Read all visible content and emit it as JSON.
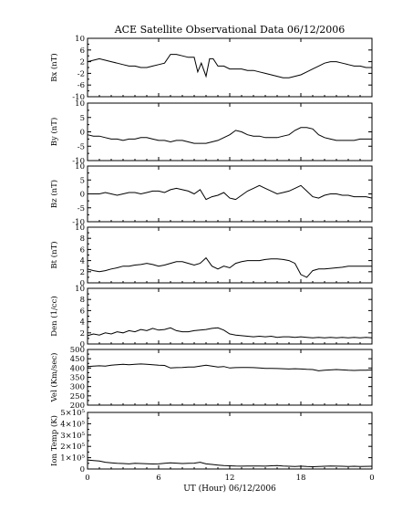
{
  "chart_data": {
    "type": "line",
    "title": "ACE Satellite Observational Data   06/12/2006",
    "xlabel": "UT (Hour)  06/12/2006",
    "x_ticks": [
      "0",
      "6",
      "12",
      "18",
      "0"
    ],
    "xlim": [
      0,
      24
    ],
    "grid": false,
    "line_color": "#000000",
    "panels": [
      {
        "id": "bx",
        "ylabel": "Bx (nT)",
        "ylim": [
          -10,
          10
        ],
        "y_ticks": [
          "10",
          "6",
          "2",
          "-2",
          "-6",
          "-10"
        ],
        "y_tick_values": [
          10,
          6,
          2,
          -2,
          -6,
          -10
        ],
        "series": [
          {
            "x": [
              0,
              0.5,
              1,
              1.5,
              2,
              2.5,
              3,
              3.5,
              4,
              4.5,
              5,
              5.5,
              6,
              6.5,
              7,
              7.5,
              8,
              8.5,
              9,
              9.3,
              9.6,
              10,
              10.3,
              10.6,
              11,
              11.5,
              12,
              12.5,
              13,
              13.5,
              14,
              14.5,
              15,
              15.5,
              16,
              16.5,
              17,
              17.5,
              18,
              18.5,
              19,
              19.5,
              20,
              20.5,
              21,
              21.5,
              22,
              22.5,
              23,
              23.5,
              24
            ],
            "y": [
              2,
              2.5,
              3,
              2.5,
              2,
              1.5,
              1,
              0.5,
              0.5,
              0,
              0,
              0.5,
              1,
              1.5,
              4.5,
              4.5,
              4,
              3.5,
              3.5,
              -1.5,
              1.5,
              -3,
              3,
              3,
              0.5,
              0.5,
              -0.5,
              -0.5,
              -0.5,
              -1,
              -1,
              -1.5,
              -2,
              -2.5,
              -3,
              -3.5,
              -3.5,
              -3,
              -2.5,
              -1.5,
              -0.5,
              0.5,
              1.5,
              2,
              2,
              1.5,
              1,
              0.5,
              0.5,
              0,
              0
            ]
          }
        ]
      },
      {
        "id": "by",
        "ylabel": "By (nT)",
        "ylim": [
          -10,
          10
        ],
        "y_ticks": [
          "10",
          "5",
          "0",
          "-5",
          "-10"
        ],
        "y_tick_values": [
          10,
          5,
          0,
          -5,
          -10
        ],
        "series": [
          {
            "x": [
              0,
              0.5,
              1,
              1.5,
              2,
              2.5,
              3,
              3.5,
              4,
              4.5,
              5,
              5.5,
              6,
              6.5,
              7,
              7.5,
              8,
              8.5,
              9,
              9.5,
              10,
              10.5,
              11,
              11.5,
              12,
              12.5,
              13,
              13.5,
              14,
              14.5,
              15,
              15.5,
              16,
              16.5,
              17,
              17.5,
              18,
              18.5,
              19,
              19.5,
              20,
              20.5,
              21,
              21.5,
              22,
              22.5,
              23,
              23.5,
              24
            ],
            "y": [
              -1,
              -1.5,
              -1.5,
              -2,
              -2.5,
              -2.5,
              -3,
              -2.5,
              -2.5,
              -2,
              -2,
              -2.5,
              -3,
              -3,
              -3.5,
              -3,
              -3,
              -3.5,
              -4,
              -4,
              -4,
              -3.5,
              -3,
              -2,
              -1,
              0.5,
              0,
              -1,
              -1.5,
              -1.5,
              -2,
              -2,
              -2,
              -1.5,
              -1,
              0.5,
              1.5,
              1.5,
              1,
              -1,
              -2,
              -2.5,
              -3,
              -3,
              -3,
              -3,
              -2.5,
              -2.5,
              -2.5
            ]
          }
        ]
      },
      {
        "id": "bz",
        "ylabel": "Bz (nT)",
        "ylim": [
          -10,
          10
        ],
        "y_ticks": [
          "10",
          "5",
          "0",
          "-5",
          "-10"
        ],
        "y_tick_values": [
          10,
          5,
          0,
          -5,
          -10
        ],
        "series": [
          {
            "x": [
              0,
              0.5,
              1,
              1.5,
              2,
              2.5,
              3,
              3.5,
              4,
              4.5,
              5,
              5.5,
              6,
              6.5,
              7,
              7.5,
              8,
              8.5,
              9,
              9.5,
              10,
              10.5,
              11,
              11.5,
              12,
              12.5,
              13,
              13.5,
              14,
              14.5,
              15,
              15.5,
              16,
              16.5,
              17,
              17.5,
              18,
              18.5,
              19,
              19.5,
              20,
              20.5,
              21,
              21.5,
              22,
              22.5,
              23,
              23.5,
              24
            ],
            "y": [
              0,
              0,
              0,
              0.5,
              0,
              -0.5,
              0,
              0.5,
              0.5,
              0,
              0.5,
              1,
              1,
              0.5,
              1.5,
              2,
              1.5,
              1,
              0,
              1.5,
              -2,
              -1,
              -0.5,
              0.5,
              -1.5,
              -2,
              -0.5,
              1,
              2,
              3,
              2,
              1,
              0,
              0.5,
              1,
              2,
              3,
              1,
              -1,
              -1.5,
              -0.5,
              0,
              0,
              -0.5,
              -0.5,
              -1,
              -1,
              -1,
              -1.5
            ]
          }
        ]
      },
      {
        "id": "bt",
        "ylabel": "Bt (nT)",
        "ylim": [
          0,
          10
        ],
        "y_ticks": [
          "10",
          "8",
          "6",
          "4",
          "2",
          "0"
        ],
        "y_tick_values": [
          10,
          8,
          6,
          4,
          2,
          0
        ],
        "series": [
          {
            "x": [
              0,
              0.5,
              1,
              1.5,
              2,
              2.5,
              3,
              3.5,
              4,
              4.5,
              5,
              5.5,
              6,
              6.5,
              7,
              7.5,
              8,
              8.5,
              9,
              9.5,
              10,
              10.5,
              11,
              11.5,
              12,
              12.5,
              13,
              13.5,
              14,
              14.5,
              15,
              15.5,
              16,
              16.5,
              17,
              17.5,
              18,
              18.5,
              19,
              19.5,
              20,
              20.5,
              21,
              21.5,
              22,
              22.5,
              23,
              23.5,
              24
            ],
            "y": [
              2.5,
              2.2,
              2,
              2.2,
              2.5,
              2.7,
              3,
              3,
              3.2,
              3.3,
              3.5,
              3.3,
              3,
              3.2,
              3.5,
              3.8,
              3.8,
              3.5,
              3.2,
              3.5,
              4.5,
              3,
              2.5,
              3,
              2.7,
              3.5,
              3.8,
              4,
              4,
              4,
              4.2,
              4.3,
              4.3,
              4.2,
              4,
              3.5,
              1.5,
              1,
              2.2,
              2.5,
              2.5,
              2.6,
              2.7,
              2.8,
              3,
              3,
              3,
              3,
              3
            ]
          }
        ]
      },
      {
        "id": "den",
        "ylabel": "Den (1/cc)",
        "ylim": [
          0,
          10
        ],
        "y_ticks": [
          "10",
          "8",
          "6",
          "4",
          "2",
          "0"
        ],
        "y_tick_values": [
          10,
          8,
          6,
          4,
          2,
          0
        ],
        "series": [
          {
            "x": [
              0,
              0.5,
              1,
              1.5,
              2,
              2.5,
              3,
              3.5,
              4,
              4.5,
              5,
              5.5,
              6,
              6.5,
              7,
              7.5,
              8,
              8.5,
              9,
              9.5,
              10,
              10.5,
              11,
              11.5,
              12,
              12.5,
              13,
              13.5,
              14,
              14.5,
              15,
              15.5,
              16,
              16.5,
              17,
              17.5,
              18,
              18.5,
              19,
              19.5,
              20,
              20.5,
              21,
              21.5,
              22,
              22.5,
              23,
              23.5,
              24
            ],
            "y": [
              1.5,
              1.8,
              1.6,
              2,
              1.8,
              2.2,
              2,
              2.4,
              2.2,
              2.6,
              2.4,
              2.8,
              2.5,
              2.6,
              2.9,
              2.4,
              2.2,
              2.2,
              2.4,
              2.5,
              2.6,
              2.8,
              2.9,
              2.5,
              1.8,
              1.6,
              1.5,
              1.4,
              1.3,
              1.4,
              1.3,
              1.4,
              1.2,
              1.3,
              1.3,
              1.2,
              1.3,
              1.2,
              1.1,
              1.2,
              1.1,
              1.2,
              1.1,
              1.2,
              1.1,
              1.2,
              1.1,
              1.2,
              1.1
            ]
          }
        ]
      },
      {
        "id": "vel",
        "ylabel": "Vel (Km/sec)",
        "ylim": [
          200,
          500
        ],
        "y_ticks": [
          "500",
          "450",
          "400",
          "350",
          "300",
          "250",
          "200"
        ],
        "y_tick_values": [
          500,
          450,
          400,
          350,
          300,
          250,
          200
        ],
        "series": [
          {
            "x": [
              0,
              0.5,
              1,
              1.5,
              2,
              2.5,
              3,
              3.5,
              4,
              4.5,
              5,
              5.5,
              6,
              6.5,
              7,
              7.5,
              8,
              8.5,
              9,
              9.5,
              10,
              10.5,
              11,
              11.5,
              12,
              12.5,
              13,
              13.5,
              14,
              14.5,
              15,
              15.5,
              16,
              16.5,
              17,
              17.5,
              18,
              18.5,
              19,
              19.5,
              20,
              20.5,
              21,
              21.5,
              22,
              22.5,
              23,
              23.5,
              24
            ],
            "y": [
              408,
              410,
              412,
              410,
              415,
              418,
              420,
              418,
              420,
              422,
              420,
              418,
              415,
              414,
              400,
              402,
              403,
              405,
              405,
              410,
              415,
              410,
              405,
              408,
              400,
              402,
              403,
              403,
              402,
              400,
              398,
              398,
              397,
              396,
              395,
              396,
              395,
              393,
              392,
              385,
              388,
              390,
              392,
              390,
              388,
              387,
              388,
              388,
              390
            ]
          }
        ]
      },
      {
        "id": "temp",
        "ylabel": "Ion Temp (K)",
        "ylim": [
          0,
          500000
        ],
        "y_ticks": [
          "0",
          "1×10⁵",
          "2×10⁵",
          "3×10⁵",
          "4×10⁵",
          "5×10⁵"
        ],
        "y_tick_values": [
          0,
          100000,
          200000,
          300000,
          400000,
          500000
        ],
        "series": [
          {
            "x": [
              0,
              0.5,
              1,
              1.5,
              2,
              2.5,
              3,
              3.5,
              4,
              4.5,
              5,
              5.5,
              6,
              6.5,
              7,
              7.5,
              8,
              8.5,
              9,
              9.5,
              10,
              10.5,
              11,
              11.5,
              12,
              12.5,
              13,
              13.5,
              14,
              14.5,
              15,
              15.5,
              16,
              16.5,
              17,
              17.5,
              18,
              18.5,
              19,
              19.5,
              20,
              20.5,
              21,
              21.5,
              22,
              22.5,
              23,
              23.5,
              24
            ],
            "y": [
              80000,
              75000,
              70000,
              60000,
              55000,
              50000,
              48000,
              45000,
              50000,
              48000,
              46000,
              44000,
              45000,
              50000,
              55000,
              52000,
              48000,
              50000,
              52000,
              60000,
              45000,
              40000,
              35000,
              30000,
              28000,
              26000,
              25000,
              26000,
              27000,
              26000,
              25000,
              28000,
              30000,
              26000,
              24000,
              22000,
              25000,
              22000,
              20000,
              22000,
              24000,
              26000,
              25000,
              24000,
              22000,
              24000,
              22000,
              23000,
              24000
            ]
          }
        ]
      }
    ]
  }
}
